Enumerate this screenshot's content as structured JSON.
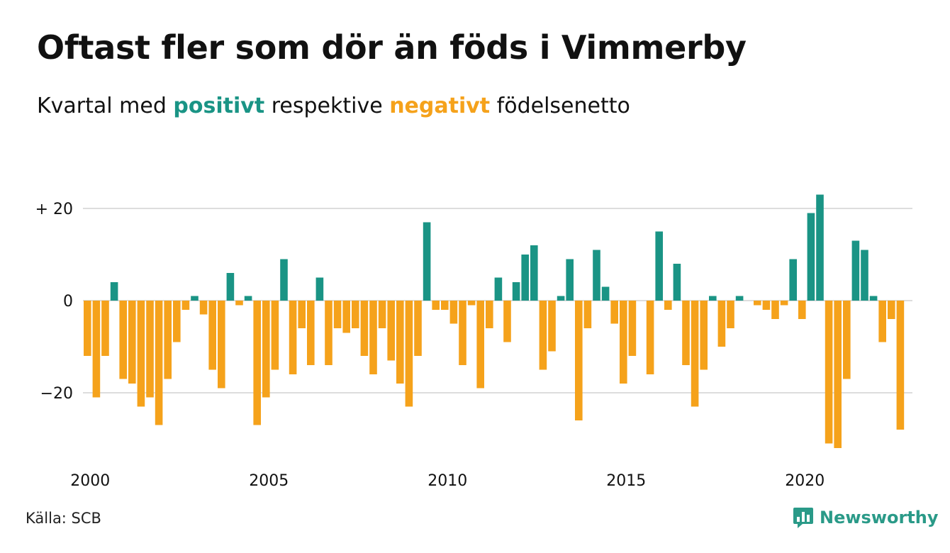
{
  "title": "Oftast fler som dör än föds i Vimmerby",
  "subtitle": {
    "prefix": "Kvartal med ",
    "positive": "positivt",
    "middle": " respektive ",
    "negative": "negativt",
    "suffix": " födelsenetto"
  },
  "source": "Källa: SCB",
  "logo_text": "Newsworthy",
  "colors": {
    "positive": "#1a9485",
    "negative": "#f5a21b",
    "grid": "#dddddd",
    "text": "#111111"
  },
  "chart_data": {
    "type": "bar",
    "x_start": "2000 Q1",
    "xlabel": "",
    "ylabel": "",
    "ylim": [
      -33,
      25
    ],
    "yticks": [
      {
        "value": 20,
        "label": "+ 20"
      },
      {
        "value": 0,
        "label": "0"
      },
      {
        "value": -20,
        "label": "−20"
      }
    ],
    "xticks": [
      "2000",
      "2005",
      "2010",
      "2015",
      "2020"
    ],
    "grid": true,
    "values": [
      -12,
      -21,
      -12,
      4,
      -17,
      -18,
      -23,
      -21,
      -27,
      -17,
      -9,
      -2,
      1,
      -3,
      -15,
      -19,
      6,
      -1,
      1,
      -27,
      -21,
      -15,
      9,
      -16,
      -6,
      -14,
      5,
      -14,
      -6,
      -7,
      -6,
      -12,
      -16,
      -6,
      -13,
      -18,
      -23,
      -12,
      17,
      -2,
      -2,
      -5,
      -14,
      -1,
      -19,
      -6,
      5,
      -9,
      4,
      10,
      12,
      -15,
      -11,
      1,
      9,
      -26,
      -6,
      11,
      3,
      -5,
      -18,
      -12,
      0,
      -16,
      15,
      -2,
      8,
      -14,
      -23,
      -15,
      1,
      -10,
      -6,
      1,
      0,
      -1,
      -2,
      -4,
      -1,
      9,
      -4,
      19,
      23,
      -31,
      -32,
      -17,
      13,
      11,
      1,
      -9,
      -4,
      -28
    ]
  }
}
